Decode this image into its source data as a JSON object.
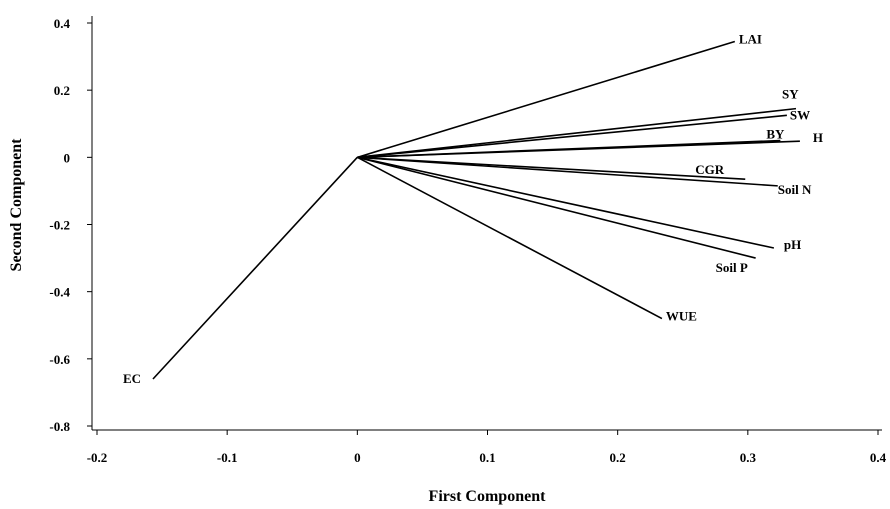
{
  "chart_data": {
    "type": "biplot",
    "xlabel": "First Component",
    "ylabel": "Second Component",
    "xlim": [
      -0.2,
      0.4
    ],
    "ylim": [
      -0.8,
      0.4
    ],
    "xticks": [
      -0.2,
      -0.1,
      0,
      0.1,
      0.2,
      0.3,
      0.4
    ],
    "yticks": [
      -0.8,
      -0.6,
      -0.4,
      -0.2,
      0,
      0.2,
      0.4
    ],
    "xtick_labels": [
      "-0.2",
      "-0.1",
      "0",
      "0.1",
      "0.2",
      "0.3",
      "0.4"
    ],
    "ytick_labels": [
      "-0.8",
      "-0.6",
      "-0.4",
      "-0.2",
      "0",
      "0.2",
      "0.4"
    ],
    "grid": false,
    "vector_color": "#000000",
    "vectors": [
      {
        "name": "LAI",
        "x": 0.29,
        "y": 0.345
      },
      {
        "name": "SY",
        "x": 0.337,
        "y": 0.145
      },
      {
        "name": "SW",
        "x": 0.33,
        "y": 0.125
      },
      {
        "name": "BY",
        "x": 0.325,
        "y": 0.05
      },
      {
        "name": "H",
        "x": 0.34,
        "y": 0.048
      },
      {
        "name": "CGR",
        "x": 0.298,
        "y": -0.065
      },
      {
        "name": "Soil N",
        "x": 0.323,
        "y": -0.085
      },
      {
        "name": "pH",
        "x": 0.32,
        "y": -0.27
      },
      {
        "name": "Soil P",
        "x": 0.306,
        "y": -0.3
      },
      {
        "name": "WUE",
        "x": 0.234,
        "y": -0.48
      },
      {
        "name": "EC",
        "x": -0.157,
        "y": -0.66
      }
    ]
  }
}
